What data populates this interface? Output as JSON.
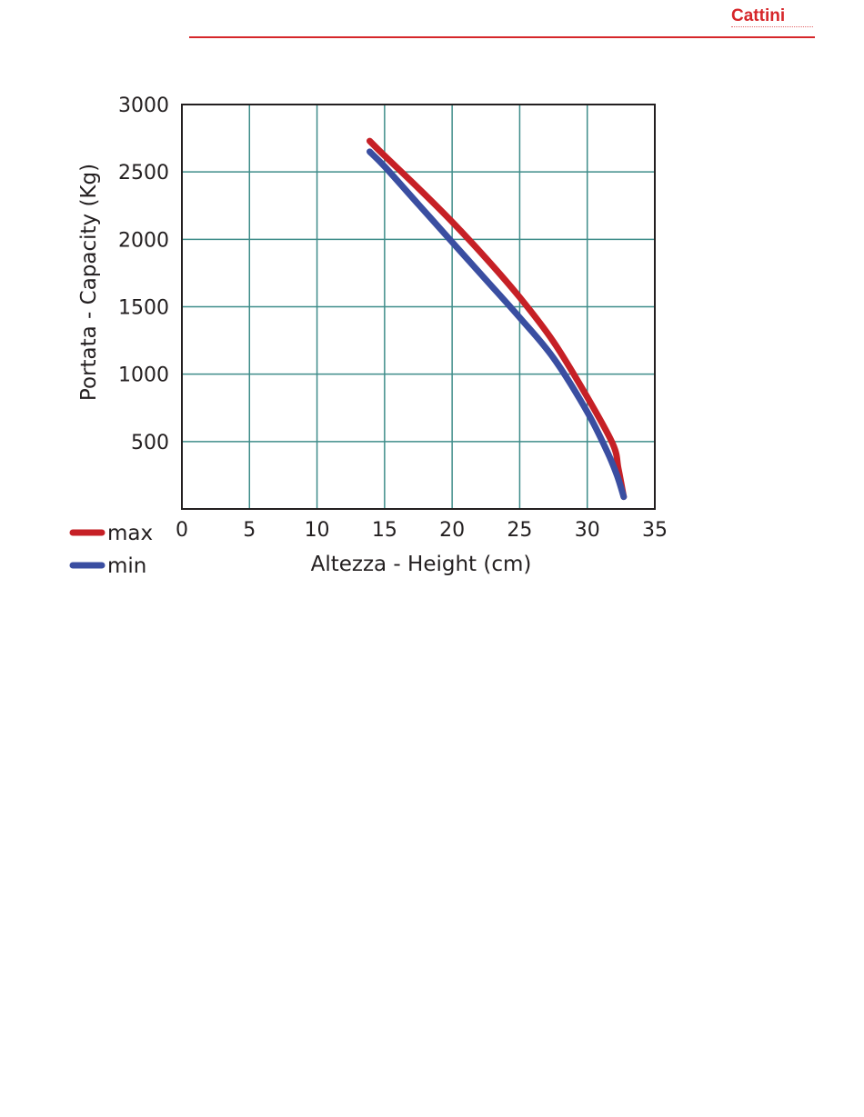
{
  "brand": {
    "logo_text": "Cattini",
    "accent_color": "#d6262a"
  },
  "chart_data": {
    "type": "line",
    "title": "",
    "xlabel": "Altezza - Height (cm)",
    "ylabel": "Portata - Capacity (Kg)",
    "xlim": [
      0,
      35
    ],
    "ylim": [
      0,
      3000
    ],
    "x_ticks": [
      0,
      5,
      10,
      15,
      20,
      25,
      30,
      35
    ],
    "y_ticks": [
      500,
      1000,
      1500,
      2000,
      2500,
      3000
    ],
    "x_tick_labels": [
      "0",
      "5",
      "10",
      "15",
      "20",
      "25",
      "30",
      "35"
    ],
    "y_tick_labels": [
      "500",
      "1000",
      "1500",
      "2000",
      "2500",
      "3000"
    ],
    "grid": true,
    "grid_color": "#3f8d8a",
    "legend_position": "bottom-left",
    "series": [
      {
        "name": "max",
        "color": "#c62026",
        "points": [
          [
            13.9,
            2730
          ],
          [
            15,
            2620
          ],
          [
            17.5,
            2380
          ],
          [
            20,
            2130
          ],
          [
            22.5,
            1860
          ],
          [
            25,
            1570
          ],
          [
            27.5,
            1240
          ],
          [
            30,
            830
          ],
          [
            31.9,
            480
          ],
          [
            32.3,
            300
          ],
          [
            32.7,
            90
          ]
        ]
      },
      {
        "name": "min",
        "color": "#3a4ea1",
        "points": [
          [
            13.9,
            2650
          ],
          [
            15,
            2540
          ],
          [
            17.5,
            2260
          ],
          [
            20,
            1980
          ],
          [
            22.5,
            1700
          ],
          [
            25,
            1420
          ],
          [
            27.5,
            1120
          ],
          [
            30,
            720
          ],
          [
            31.5,
            420
          ],
          [
            32.2,
            250
          ],
          [
            32.7,
            90
          ]
        ]
      }
    ]
  }
}
